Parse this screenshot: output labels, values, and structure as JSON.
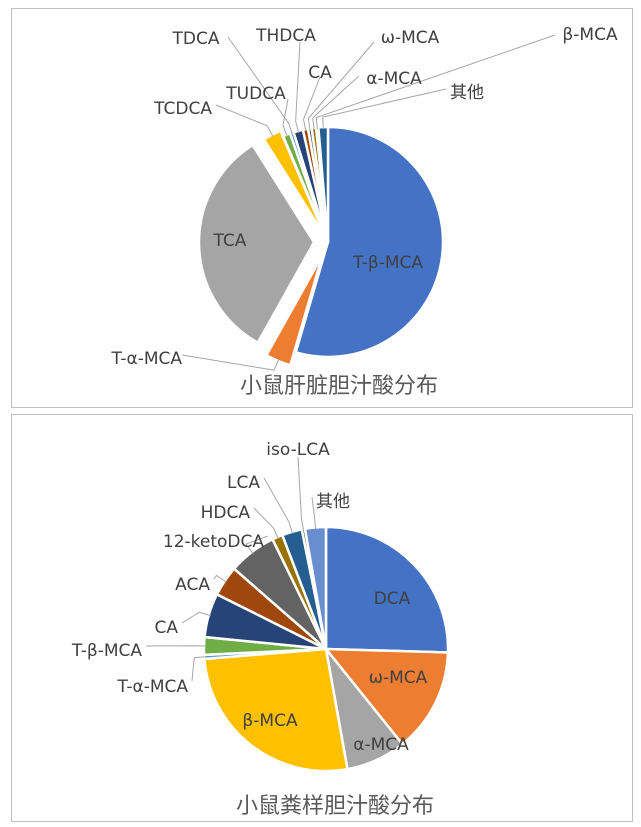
{
  "chart_data": [
    {
      "type": "pie",
      "title": "小鼠肝脏胆汁酸分布",
      "slices": [
        {
          "label": "T-β-MCA",
          "value": 53.0,
          "color": "#4472C4",
          "label_inside": true
        },
        {
          "label": "T-α-MCA",
          "value": 3.5,
          "color": "#ED7D31"
        },
        {
          "label": "TCA",
          "value": 32.0,
          "color": "#A5A5A5",
          "label_inside": true
        },
        {
          "label": "TCDCA",
          "value": 2.5,
          "color": "#FFC000"
        },
        {
          "label": "TUDCA",
          "value": 1.0,
          "color": "#70AD47"
        },
        {
          "label": "TDCA",
          "value": 0.5,
          "color": "#5B9BD5"
        },
        {
          "label": "THDCA",
          "value": 1.3,
          "color": "#264478"
        },
        {
          "label": "CA",
          "value": 0.7,
          "color": "#9E480E"
        },
        {
          "label": "ω-MCA",
          "value": 0.5,
          "color": "#636363"
        },
        {
          "label": "α-MCA",
          "value": 0.6,
          "color": "#997300"
        },
        {
          "label": "β-MCA",
          "value": 0.3,
          "color": "#A9D18E"
        },
        {
          "label": "其他",
          "value": 1.3,
          "color": "#255E91"
        }
      ]
    },
    {
      "type": "pie",
      "title": "小鼠粪样胆汁酸分布",
      "slices": [
        {
          "label": "DCA",
          "value": 24.0,
          "color": "#4472C4",
          "label_inside": true
        },
        {
          "label": "ω-MCA",
          "value": 13.0,
          "color": "#ED7D31",
          "label_inside": true
        },
        {
          "label": "α-MCA",
          "value": 7.5,
          "color": "#A5A5A5",
          "label_inside": true
        },
        {
          "label": "β-MCA",
          "value": 25.0,
          "color": "#FFC000",
          "label_inside": true
        },
        {
          "label": "T-α-MCA",
          "value": 0.5,
          "color": "#5B9BD5"
        },
        {
          "label": "T-β-MCA",
          "value": 2.2,
          "color": "#70AD47"
        },
        {
          "label": "CA",
          "value": 5.5,
          "color": "#264478"
        },
        {
          "label": "ACA",
          "value": 3.8,
          "color": "#9E480E"
        },
        {
          "label": "12-ketoDCA",
          "value": 6.0,
          "color": "#636363"
        },
        {
          "label": "HDCA",
          "value": 1.3,
          "color": "#997300"
        },
        {
          "label": "LCA",
          "value": 2.5,
          "color": "#255E91"
        },
        {
          "label": "iso-LCA",
          "value": 0.4,
          "color": "#43682B"
        },
        {
          "label": "其他",
          "value": 2.6,
          "color": "#698ED0"
        }
      ]
    }
  ]
}
